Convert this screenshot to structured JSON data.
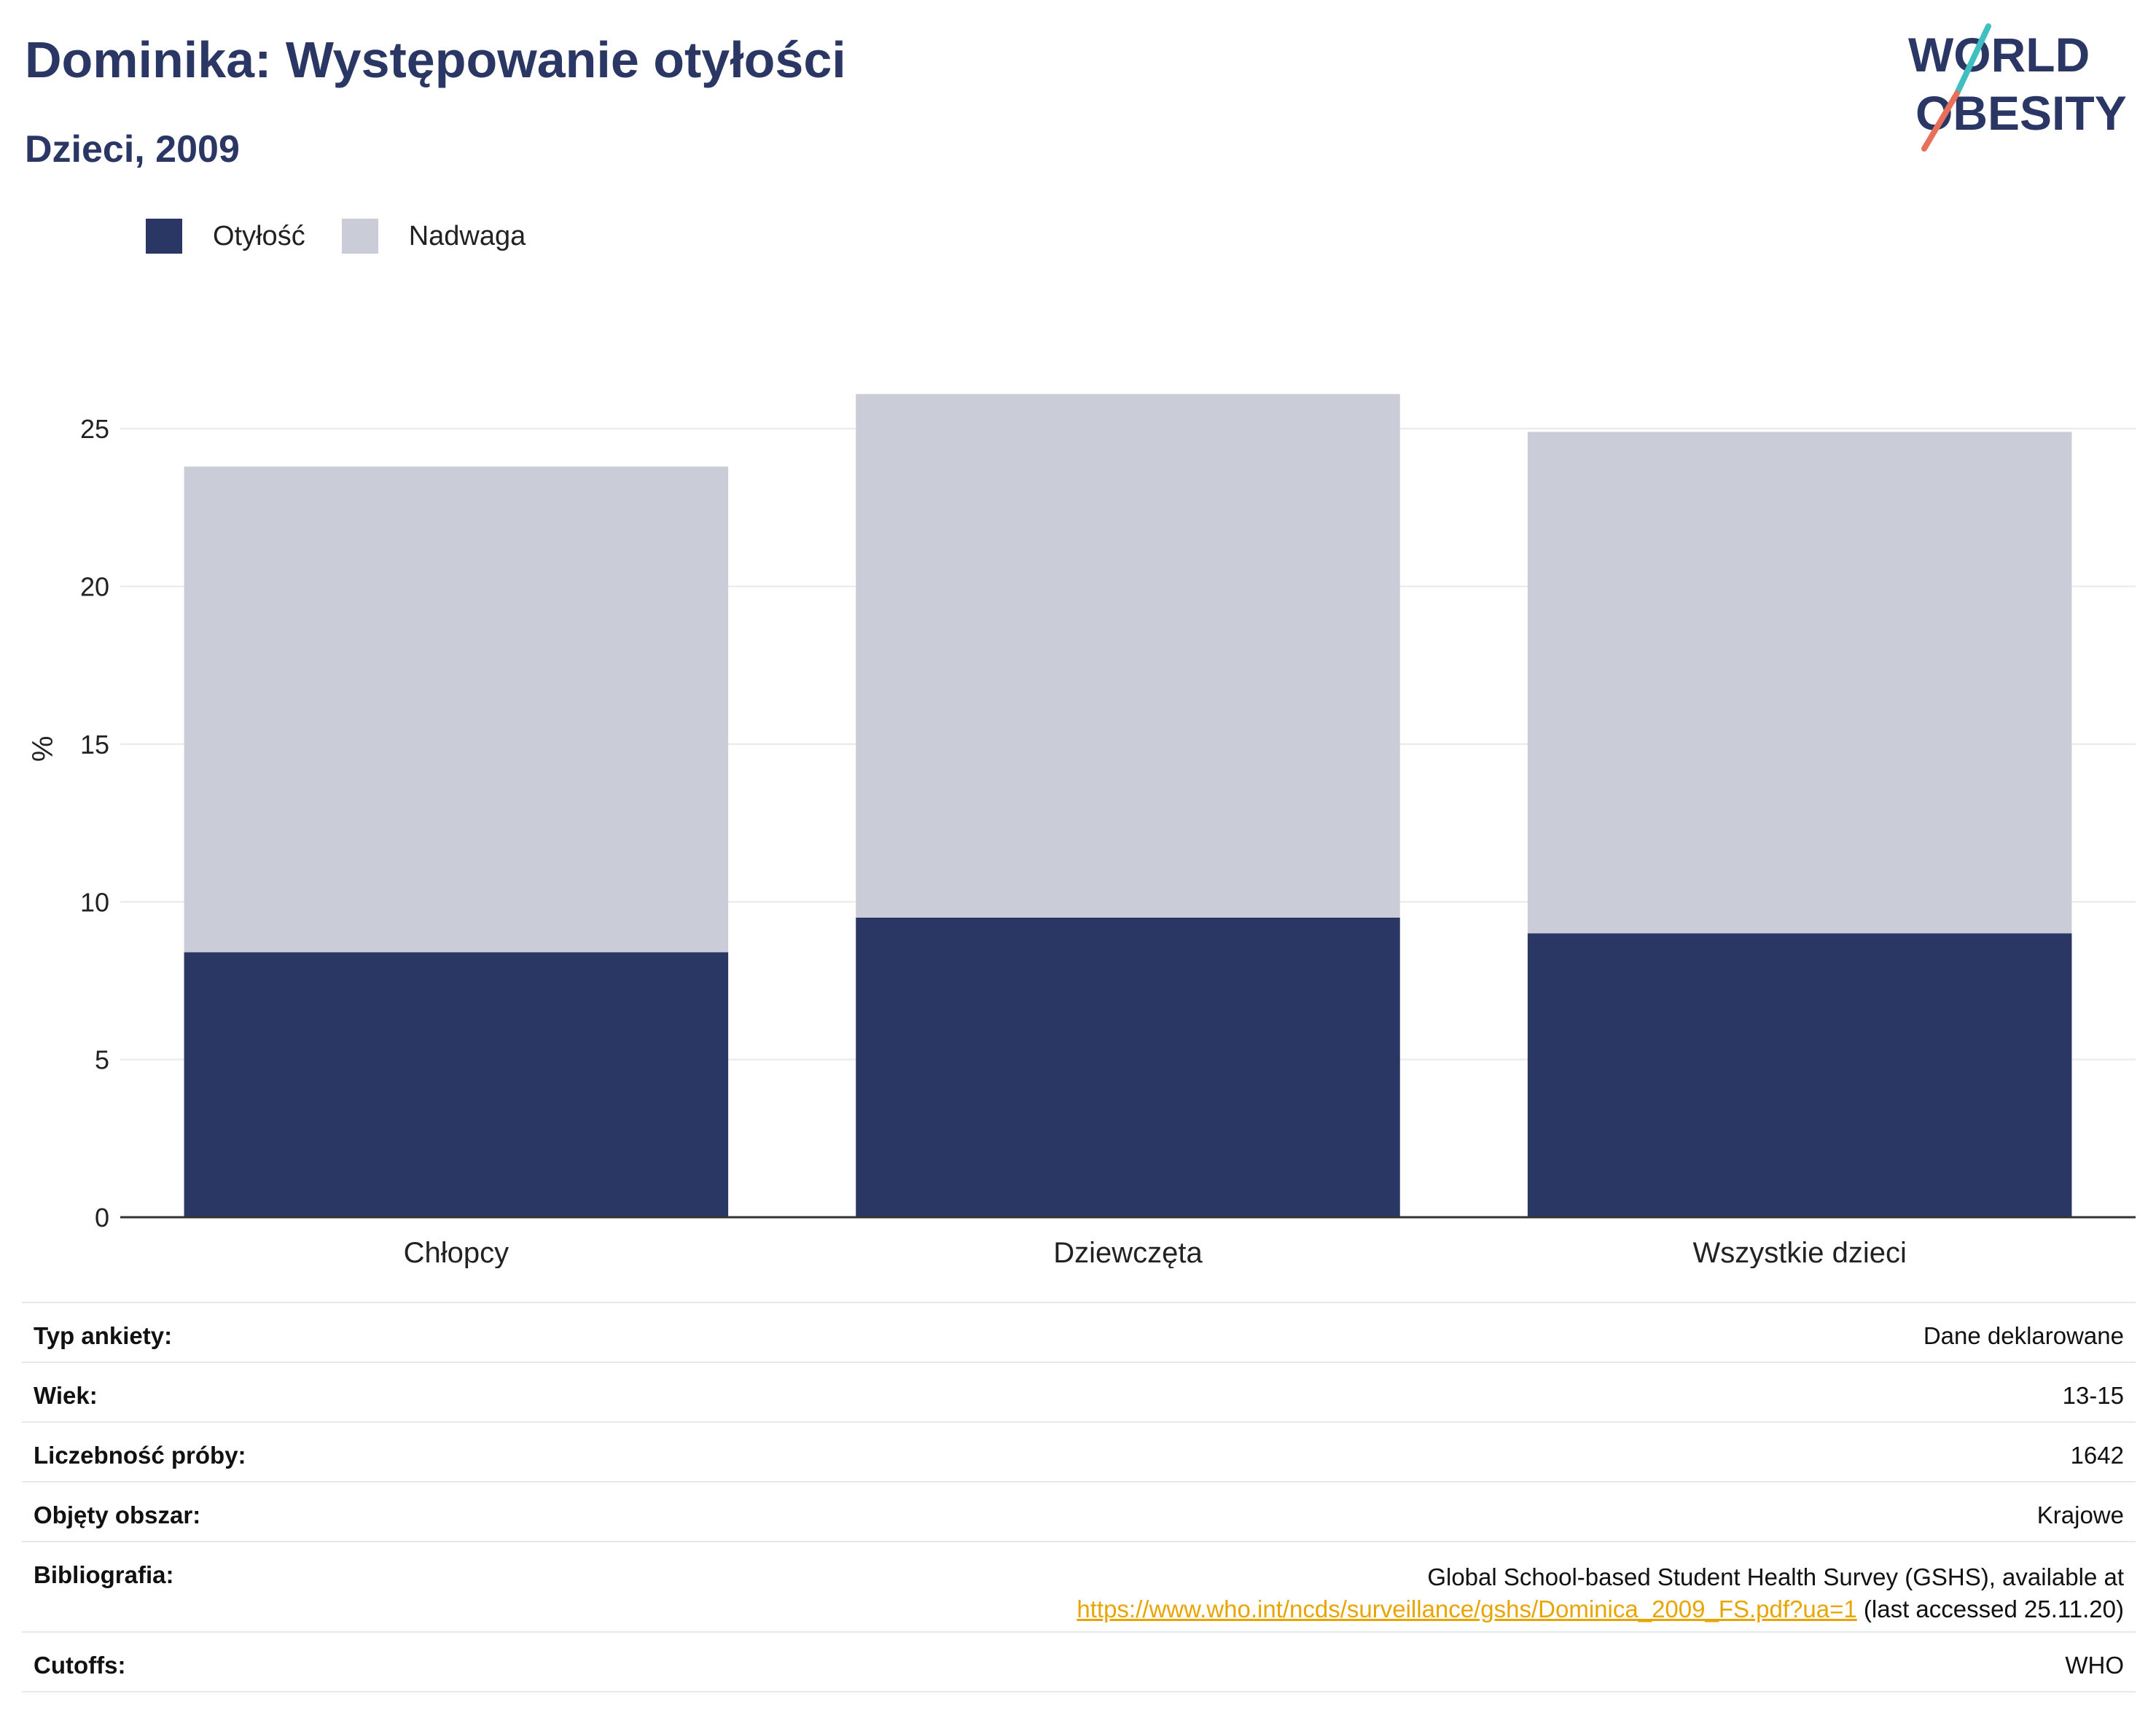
{
  "header": {
    "title": "Dominika: Występowanie otyłości",
    "subtitle": "Dzieci, 2009"
  },
  "logo": {
    "line1": "WORLD",
    "line2": "OBESITY"
  },
  "colors": {
    "obesity": "#2a3764",
    "overweight": "#cacdd8",
    "title": "#2a3764",
    "link": "#e8a500"
  },
  "chart_data": {
    "type": "bar",
    "stacked": true,
    "categories": [
      "Chłopcy",
      "Dziewczęta",
      "Wszystkie dzieci"
    ],
    "series": [
      {
        "name": "Otyłość",
        "values": [
          8.4,
          9.5,
          9.0
        ]
      },
      {
        "name": "Nadwaga",
        "values": [
          15.4,
          16.6,
          15.9
        ]
      }
    ],
    "ylabel": "%",
    "ylim": [
      0,
      27.5
    ],
    "yticks": [
      0,
      5,
      10,
      15,
      20,
      25
    ],
    "grid": true,
    "legend": "top-left"
  },
  "info": {
    "survey_type": {
      "label": "Typ ankiety:",
      "value": "Dane deklarowane"
    },
    "age": {
      "label": "Wiek:",
      "value": "13-15"
    },
    "sample": {
      "label": "Liczebność próby:",
      "value": "1642"
    },
    "area": {
      "label": "Objęty obszar:",
      "value": "Krajowe"
    },
    "bibliography": {
      "label": "Bibliografia:",
      "text": "Global School-based Student Health Survey (GSHS), available at",
      "link": "https://www.who.int/ncds/surveillance/gshs/Dominica_2009_FS.pdf?ua=1",
      "suffix": "(last accessed 25.11.20)"
    },
    "cutoffs": {
      "label": "Cutoffs:",
      "value": "WHO"
    }
  }
}
